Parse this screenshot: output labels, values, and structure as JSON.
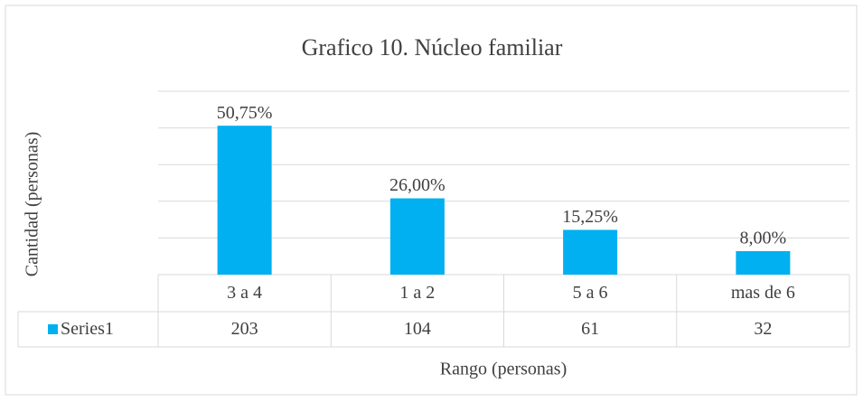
{
  "chart_data": {
    "type": "bar",
    "title": "Grafico 10. Núcleo familiar",
    "y_label": "Cantidad (personas)",
    "x_label": "Rango (personas)",
    "categories": [
      "3 a 4",
      "1 a 2",
      "5 a 6",
      "mas de 6"
    ],
    "series": [
      {
        "name": "Series1",
        "color": "#00b0f0",
        "values": [
          203,
          104,
          61,
          32
        ]
      }
    ],
    "percentages": [
      50.75,
      26,
      15.25,
      8
    ],
    "percentage_labels": [
      "50,75%",
      "26,00%",
      "15,25%",
      "8,00%"
    ],
    "ylim": [
      0,
      250
    ],
    "yticks": [
      0,
      50,
      100,
      150,
      200,
      250
    ],
    "grid": true
  }
}
